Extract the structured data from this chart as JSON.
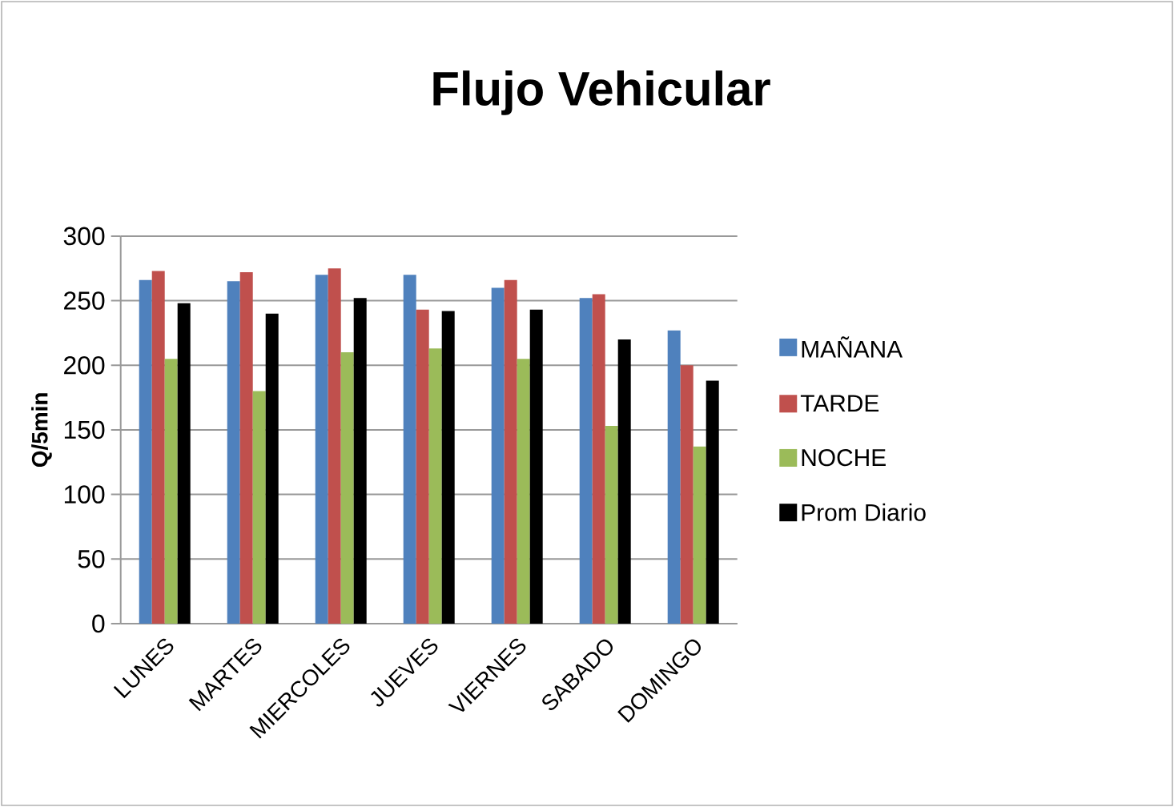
{
  "chart_data": {
    "type": "bar",
    "title": "Flujo Vehicular",
    "ylabel": "Q/5min",
    "categories": [
      "LUNES",
      "MARTES",
      "MIERCOLES",
      "JUEVES",
      "VIERNES",
      "SABADO",
      "DOMINGO"
    ],
    "series": [
      {
        "name": "MAÑANA",
        "color": "#4f81bd",
        "values": [
          266,
          265,
          270,
          270,
          260,
          252,
          227
        ]
      },
      {
        "name": "TARDE",
        "color": "#c0504d",
        "values": [
          273,
          272,
          275,
          243,
          266,
          255,
          200
        ]
      },
      {
        "name": "NOCHE",
        "color": "#9bbb59",
        "values": [
          205,
          180,
          210,
          213,
          205,
          153,
          137
        ]
      },
      {
        "name": "Prom Diario",
        "color": "#000000",
        "values": [
          248,
          240,
          252,
          242,
          243,
          220,
          188
        ]
      }
    ],
    "ylim": [
      0,
      300
    ],
    "yticks": [
      0,
      50,
      100,
      150,
      200,
      250,
      300
    ],
    "grid": "y",
    "legend": "right"
  }
}
